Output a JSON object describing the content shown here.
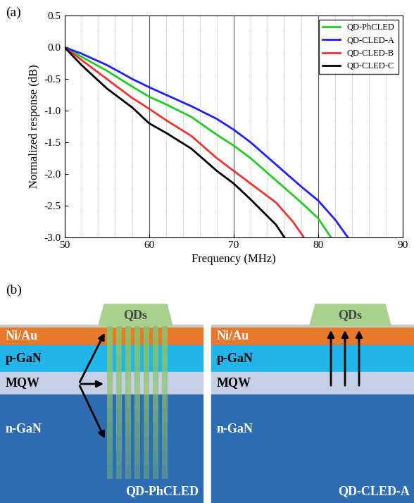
{
  "chart_data": {
    "type": "line",
    "xlabel": "Frequency (MHz)",
    "ylabel": "Normalized response (dB)",
    "xlim": [
      50,
      90
    ],
    "xticks": [
      50,
      60,
      70,
      80,
      90
    ],
    "ylim": [
      -3.0,
      0.5
    ],
    "yticks": [
      -3.0,
      -2.5,
      -2.0,
      -1.5,
      -1.0,
      -0.5,
      0.0,
      0.5
    ],
    "grid": "x",
    "legend": "upper right",
    "series": [
      {
        "name": "QD-PhCLED",
        "color": "#22cc22",
        "x": [
          50,
          52,
          55,
          58,
          60,
          62,
          65,
          68,
          70,
          72,
          75,
          78,
          80,
          81.5
        ],
        "values": [
          0.0,
          -0.15,
          -0.37,
          -0.62,
          -0.78,
          -0.9,
          -1.1,
          -1.38,
          -1.55,
          -1.75,
          -2.1,
          -2.45,
          -2.7,
          -3.0
        ]
      },
      {
        "name": "QD-CLED-A",
        "color": "#1f1fff",
        "x": [
          50,
          52,
          55,
          58,
          60,
          62,
          65,
          68,
          70,
          72,
          75,
          78,
          80,
          82,
          83.5
        ],
        "values": [
          0.0,
          -0.1,
          -0.28,
          -0.5,
          -0.63,
          -0.75,
          -0.93,
          -1.13,
          -1.3,
          -1.5,
          -1.85,
          -2.2,
          -2.42,
          -2.72,
          -3.0
        ]
      },
      {
        "name": "QD-CLED-B",
        "color": "#ee3333",
        "x": [
          50,
          52,
          55,
          58,
          60,
          62,
          65,
          68,
          70,
          72,
          75,
          77,
          78.3
        ],
        "values": [
          0.0,
          -0.2,
          -0.5,
          -0.8,
          -0.97,
          -1.15,
          -1.4,
          -1.75,
          -1.95,
          -2.15,
          -2.45,
          -2.75,
          -3.0
        ]
      },
      {
        "name": "QD-CLED-C",
        "color": "#000000",
        "x": [
          50,
          52,
          55,
          58,
          60,
          62,
          65,
          68,
          70,
          72,
          75,
          76
        ],
        "values": [
          0.0,
          -0.28,
          -0.65,
          -0.95,
          -1.2,
          -1.35,
          -1.6,
          -1.95,
          -2.15,
          -2.4,
          -2.8,
          -3.0
        ]
      }
    ]
  },
  "panel_labels": [
    "(a)",
    "(b)"
  ],
  "diagram": {
    "panels": [
      {
        "name": "QD-PhCLED",
        "qd_label": "QDs",
        "layers": [
          "Ni/Au",
          "p-GaN",
          "MQW",
          "n-GaN"
        ],
        "photonic_crystal": true
      },
      {
        "name": "QD-CLED-A",
        "qd_label": "QDs",
        "layers": [
          "Ni/Au",
          "p-GaN",
          "MQW",
          "n-GaN"
        ],
        "photonic_crystal": false
      }
    ]
  }
}
